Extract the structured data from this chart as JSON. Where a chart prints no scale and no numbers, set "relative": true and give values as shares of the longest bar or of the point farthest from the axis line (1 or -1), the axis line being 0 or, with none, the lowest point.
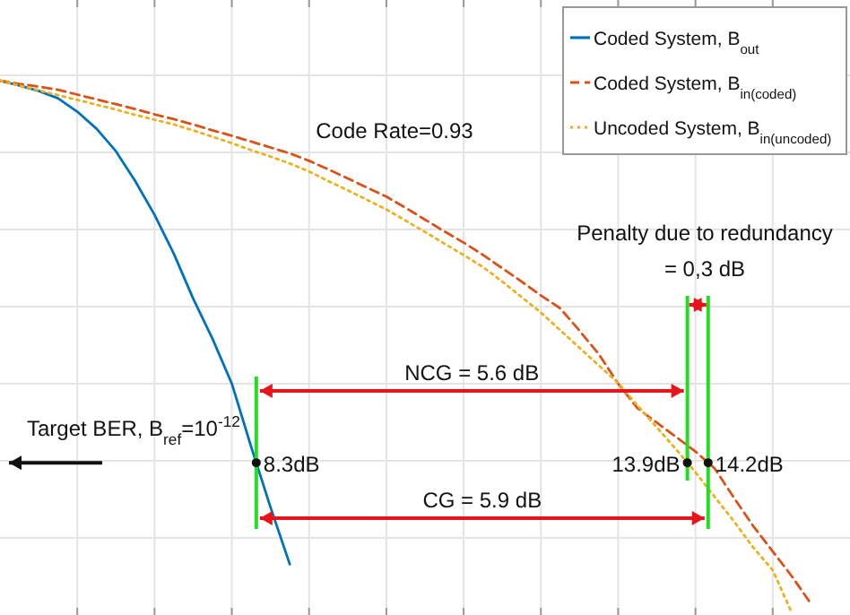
{
  "chart_data": {
    "type": "line",
    "relative": true,
    "categories": [
      null,
      null,
      null,
      null,
      null,
      null,
      null,
      null,
      null,
      null,
      null,
      null,
      null,
      null,
      null,
      null,
      null,
      null,
      null,
      null,
      null,
      null,
      null,
      null,
      null,
      null,
      null,
      null,
      null,
      null,
      null,
      null,
      null,
      null,
      null,
      null,
      null,
      null,
      null,
      null,
      null,
      null,
      null,
      null,
      null
    ],
    "grid": true,
    "legend": "top right",
    "series": [
      {
        "name": "Coded System, B$_{out}$",
        "color": "#0072bd",
        "line_style": "solid",
        "values": [
          1,
          0.991,
          0.981,
          0.967,
          0.942,
          0.91,
          0.868,
          0.812,
          0.749,
          0.676,
          0.592,
          0.517,
          0.433,
          0.315,
          0.202,
          0.095,
          null,
          null,
          null,
          null,
          null,
          null,
          null,
          null,
          null,
          null,
          null,
          null,
          null,
          null,
          null,
          null,
          null,
          null,
          null,
          null,
          null,
          null,
          null,
          null,
          null,
          null,
          null,
          null,
          null
        ]
      },
      {
        "name": "Coded System, B$_{in(coded)}$",
        "color": "#d95319",
        "line_style": "dashed",
        "values": [
          1,
          0.994,
          0.989,
          0.983,
          0.974,
          0.965,
          0.956,
          0.947,
          0.937,
          0.928,
          0.918,
          0.907,
          0.897,
          0.886,
          0.875,
          0.864,
          0.85,
          0.834,
          0.817,
          0.8,
          0.783,
          0.762,
          0.74,
          0.718,
          0.697,
          0.674,
          0.649,
          0.624,
          0.598,
          0.574,
          0.532,
          0.488,
          0.433,
          0.387,
          0.36,
          0.333,
          0.306,
          0.274,
          0.219,
          0.166,
          0.119,
          0.072,
          0.02,
          null,
          null
        ]
      },
      {
        "name": "Uncoded System, B$_{in(uncoded)}$",
        "color": "#edb120",
        "line_style": "dotted",
        "values": [
          1,
          0.991,
          0.982,
          0.973,
          0.964,
          0.955,
          0.946,
          0.936,
          0.927,
          0.918,
          0.907,
          0.895,
          0.883,
          0.87,
          0.858,
          0.845,
          0.83,
          0.812,
          0.795,
          0.777,
          0.759,
          0.738,
          0.717,
          0.695,
          0.674,
          0.651,
          0.624,
          0.595,
          0.566,
          0.533,
          0.5,
          0.467,
          0.434,
          0.392,
          0.351,
          0.31,
          0.267,
          0.221,
          0.175,
          0.126,
          0.084,
          0.003,
          null,
          null,
          null
        ]
      }
    ],
    "ref_lines": [
      {
        "axis": "y",
        "value": 0.285,
        "color": "#111111"
      }
    ],
    "annotations": [
      "Code Rate=0.93",
      "Penalty due to redundancy",
      "=  0,3 dB",
      "NCG = 5.6 dB",
      "CG = 5.9 dB",
      "8.3dB",
      "13.9dB",
      "14.2dB",
      "Target BER, B$_{ref}$=10$^{-12}$"
    ]
  }
}
